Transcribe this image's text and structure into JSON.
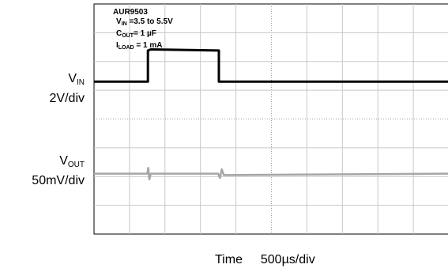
{
  "chart_data": {
    "type": "line",
    "annotations": {
      "device": "AUR9503",
      "vin": {
        "symbol": "V",
        "sub": "IN",
        "rest": " =3.5 to 5.5V"
      },
      "cout": {
        "symbol": "C",
        "sub": "OUT",
        "rest": "= 1 µF"
      },
      "iload": {
        "symbol": "I",
        "sub": "LOAD",
        "rest": " = 1 mA"
      }
    },
    "xlabel": {
      "name": "Time",
      "scale": "500µs/div"
    },
    "x_divisions": 10,
    "y_divisions": 8,
    "grid": true,
    "series": [
      {
        "name": "VIN",
        "label": {
          "symbol": "V",
          "sub": "IN"
        },
        "scale": "2V/div",
        "color": "#000000",
        "points_div": [
          [
            0,
            5.3
          ],
          [
            1.52,
            5.3
          ],
          [
            1.52,
            6.38
          ],
          [
            1.6,
            6.42
          ],
          [
            3.52,
            6.38
          ],
          [
            3.52,
            5.3
          ],
          [
            10,
            5.3
          ]
        ]
      },
      {
        "name": "VOUT",
        "label": {
          "symbol": "V",
          "sub": "OUT"
        },
        "scale": "50mV/div",
        "color": "#a6a6a6",
        "points_div": [
          [
            0,
            2.1
          ],
          [
            1.5,
            2.1
          ],
          [
            1.53,
            2.3
          ],
          [
            1.56,
            1.9
          ],
          [
            1.6,
            2.1
          ],
          [
            3.5,
            2.1
          ],
          [
            3.55,
            1.95
          ],
          [
            3.6,
            2.25
          ],
          [
            3.66,
            2.05
          ],
          [
            10,
            2.1
          ]
        ]
      }
    ]
  }
}
